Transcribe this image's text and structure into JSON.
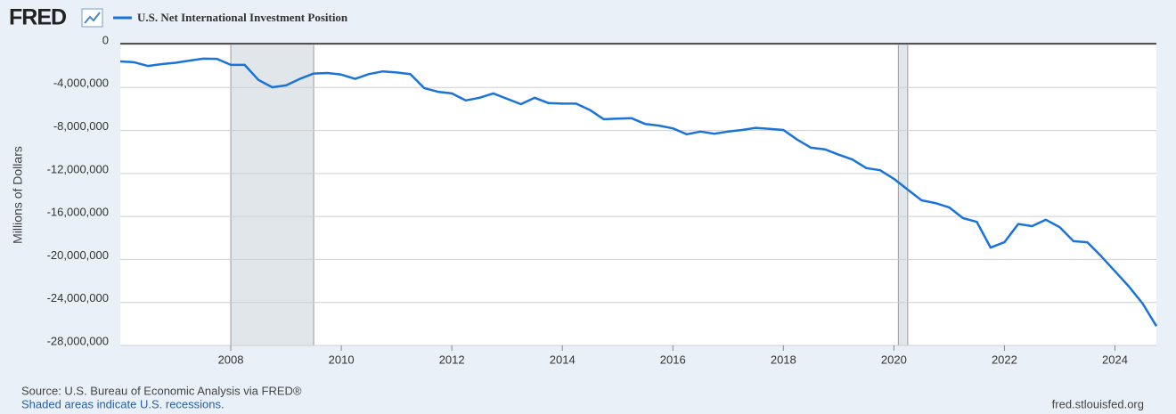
{
  "chart_data": {
    "type": "line",
    "logo": "FRED",
    "title": "U.S. Net International Investment Position",
    "y_label": "Millions of Dollars",
    "source": "Source: U.S. Bureau of Economic Analysis via FRED®",
    "recession_note": "Shaded areas indicate U.S. recessions.",
    "site": "fred.stlouisfed.org",
    "x": [
      2006,
      2006.25,
      2006.5,
      2006.75,
      2007,
      2007.25,
      2007.5,
      2007.75,
      2008,
      2008.25,
      2008.5,
      2008.75,
      2009,
      2009.25,
      2009.5,
      2009.75,
      2010,
      2010.25,
      2010.5,
      2010.75,
      2011,
      2011.25,
      2011.5,
      2011.75,
      2012,
      2012.25,
      2012.5,
      2012.75,
      2013,
      2013.25,
      2013.5,
      2013.75,
      2014,
      2014.25,
      2014.5,
      2014.75,
      2015,
      2015.25,
      2015.5,
      2015.75,
      2016,
      2016.25,
      2016.5,
      2016.75,
      2017,
      2017.25,
      2017.5,
      2017.75,
      2018,
      2018.25,
      2018.5,
      2018.75,
      2019,
      2019.25,
      2019.5,
      2019.75,
      2020,
      2020.25,
      2020.5,
      2020.75,
      2021,
      2021.25,
      2021.5,
      2021.75,
      2022,
      2022.25,
      2022.5,
      2022.75,
      2023,
      2023.25,
      2023.5,
      2023.75,
      2024,
      2024.25,
      2024.5,
      2024.75
    ],
    "series": [
      {
        "name": "U.S. Net International Investment Position",
        "color": "#1a73d9",
        "values": [
          -1570000,
          -1650000,
          -2000000,
          -1820000,
          -1700000,
          -1500000,
          -1320000,
          -1330000,
          -1900000,
          -1900000,
          -3300000,
          -3980000,
          -3800000,
          -3200000,
          -2700000,
          -2650000,
          -2800000,
          -3200000,
          -2750000,
          -2500000,
          -2600000,
          -2750000,
          -4050000,
          -4400000,
          -4550000,
          -5200000,
          -4950000,
          -4550000,
          -5050000,
          -5550000,
          -4950000,
          -5450000,
          -5500000,
          -5500000,
          -6100000,
          -6950000,
          -6900000,
          -6850000,
          -7400000,
          -7550000,
          -7800000,
          -8350000,
          -8100000,
          -8300000,
          -8100000,
          -7950000,
          -7750000,
          -7850000,
          -7950000,
          -8850000,
          -9600000,
          -9750000,
          -10250000,
          -10700000,
          -11500000,
          -11700000,
          -12500000,
          -13500000,
          -14500000,
          -14750000,
          -15150000,
          -16150000,
          -16500000,
          -18900000,
          -18400000,
          -16700000,
          -16900000,
          -16300000,
          -17000000,
          -18300000,
          -18400000,
          -19700000,
          -21100000,
          -22500000,
          -24100000,
          -26200000
        ]
      }
    ],
    "recessions": [
      [
        2008,
        2009.5
      ],
      [
        2020.08,
        2020.25
      ]
    ],
    "xlim": [
      2006,
      2024.75
    ],
    "xticks": [
      2008,
      2010,
      2012,
      2014,
      2016,
      2018,
      2020,
      2022,
      2024
    ],
    "ylim": [
      -28000000,
      0
    ],
    "yticks": [
      0,
      {
        "value": -4000000,
        "label": "-4,000,000"
      },
      {
        "value": -8000000,
        "label": "-8,000,000"
      },
      {
        "value": -12000000,
        "label": "-12,000,000"
      },
      {
        "value": -16000000,
        "label": "-16,000,000"
      },
      {
        "value": -20000000,
        "label": "-20,000,000"
      },
      {
        "value": -24000000,
        "label": "-24,000,000"
      },
      {
        "value": -28000000,
        "label": "-28,000,000"
      }
    ],
    "grid": true
  }
}
